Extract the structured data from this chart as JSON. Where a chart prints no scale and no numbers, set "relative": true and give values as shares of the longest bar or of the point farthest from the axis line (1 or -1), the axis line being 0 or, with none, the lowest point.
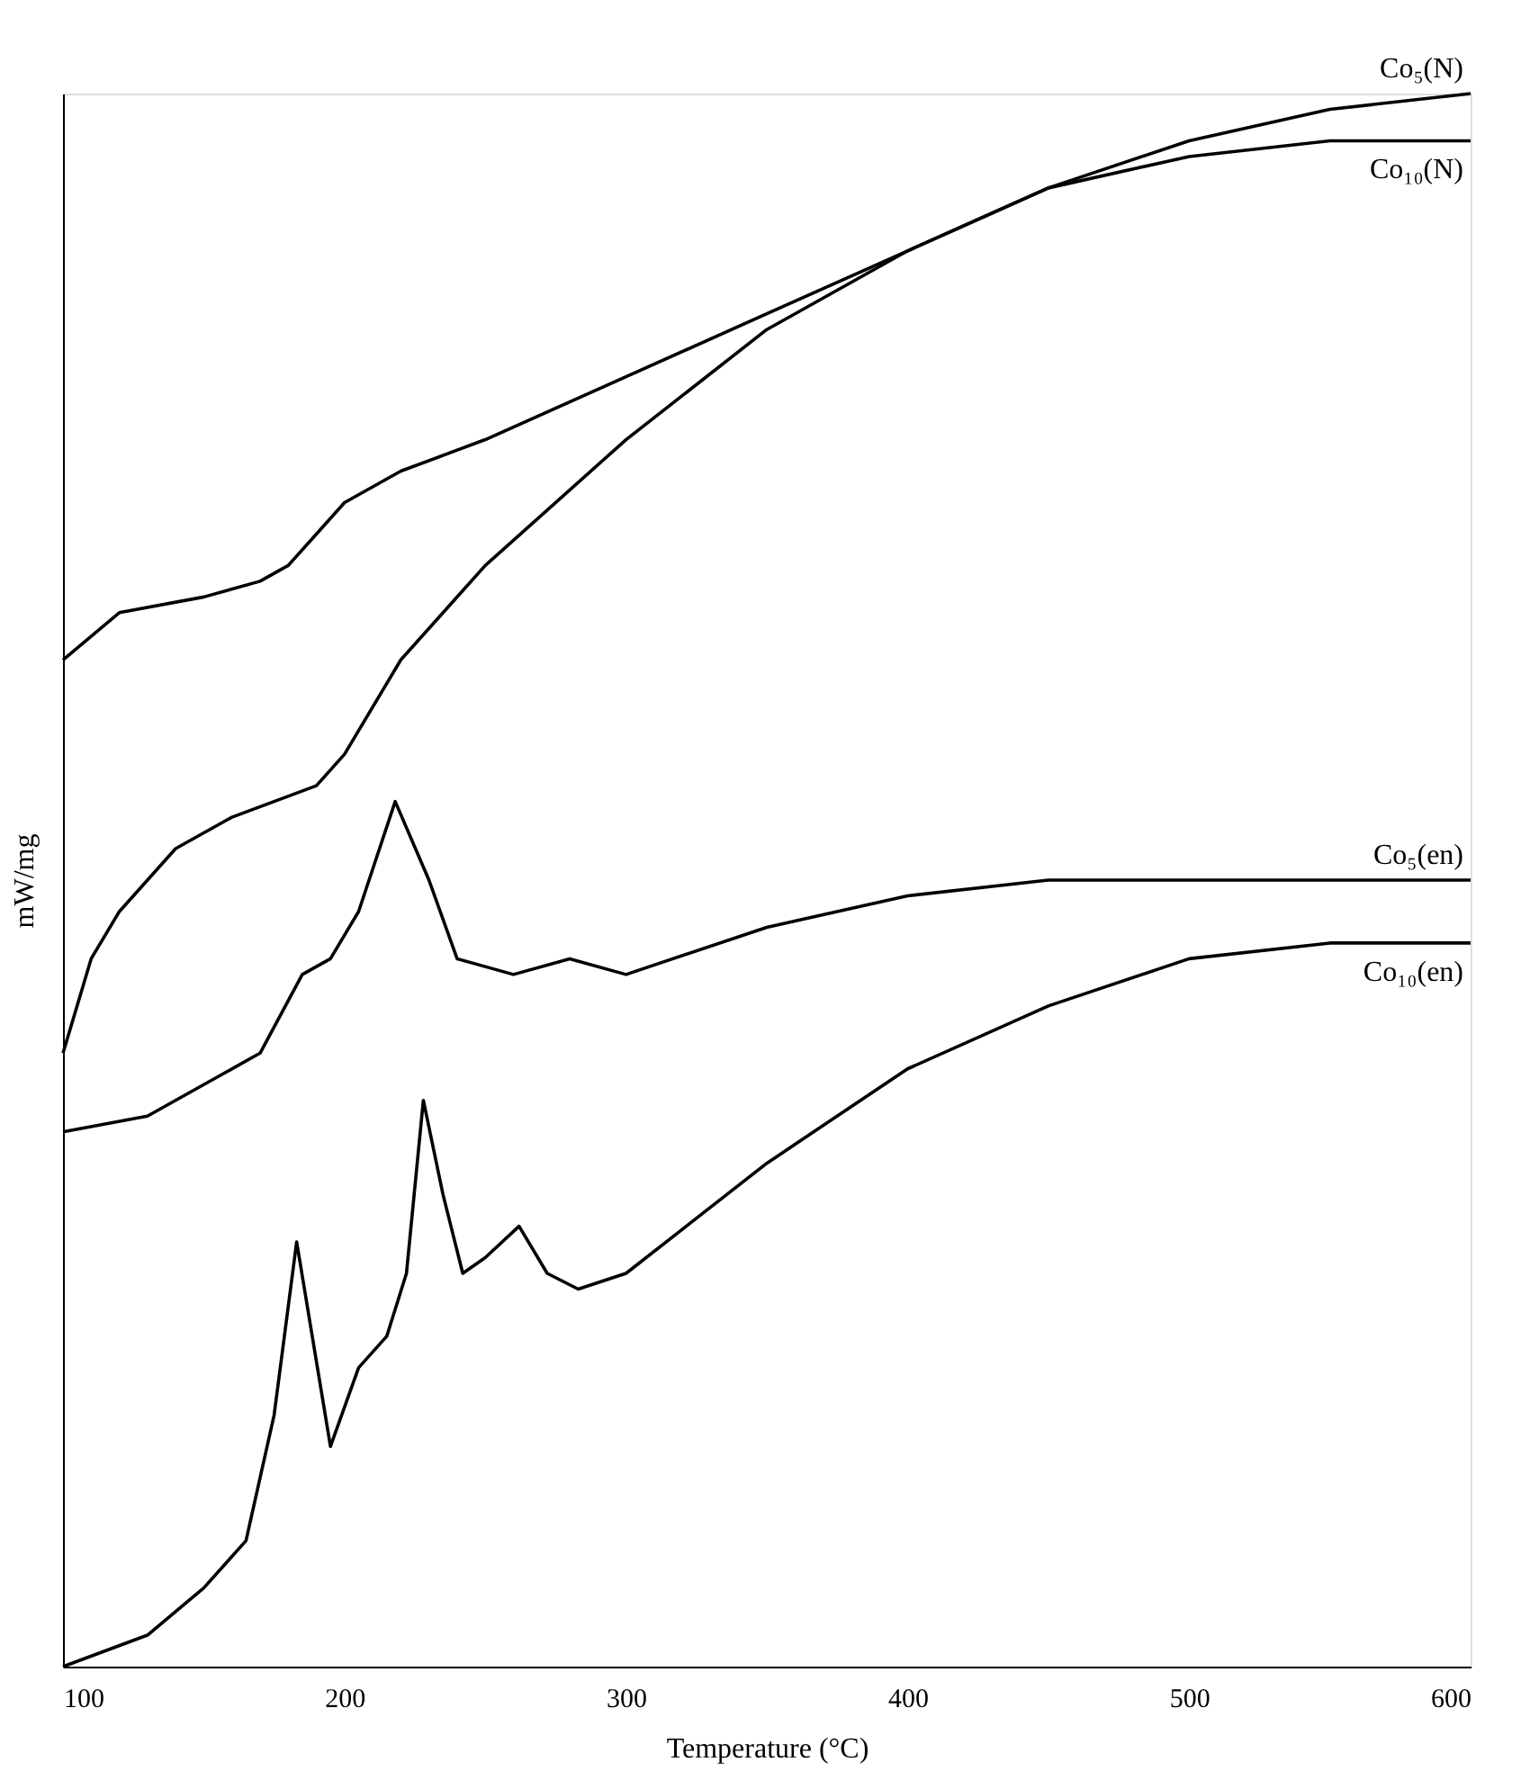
{
  "chart_data": {
    "type": "line",
    "xlabel": "Temperature (°C)",
    "ylabel": "mW/mg",
    "relative": true,
    "xlim": [
      100,
      600
    ],
    "xticks": [
      100,
      200,
      300,
      400,
      500,
      600
    ],
    "grid": false,
    "marker": "none",
    "line_style": "solid",
    "series": [
      {
        "name": "Co₅(N)",
        "color": "#000000",
        "x": [
          100,
          120,
          150,
          170,
          180,
          190,
          200,
          220,
          250,
          300,
          350,
          400,
          450,
          500,
          550,
          600
        ],
        "values": [
          0.64,
          0.67,
          0.68,
          0.69,
          0.7,
          0.72,
          0.74,
          0.76,
          0.78,
          0.82,
          0.86,
          0.9,
          0.94,
          0.97,
          0.99,
          1.0
        ]
      },
      {
        "name": "Co₁₀(N)",
        "color": "#000000",
        "x": [
          100,
          110,
          120,
          140,
          160,
          175,
          190,
          200,
          220,
          250,
          300,
          350,
          400,
          450,
          500,
          550,
          600
        ],
        "values": [
          0.39,
          0.45,
          0.48,
          0.52,
          0.54,
          0.55,
          0.56,
          0.58,
          0.64,
          0.7,
          0.78,
          0.85,
          0.9,
          0.94,
          0.96,
          0.97,
          0.97
        ]
      },
      {
        "name": "Co₅(en)",
        "color": "#000000",
        "x": [
          100,
          130,
          150,
          170,
          185,
          195,
          205,
          218,
          230,
          240,
          260,
          280,
          300,
          350,
          400,
          450,
          500,
          550,
          600
        ],
        "values": [
          0.34,
          0.35,
          0.37,
          0.39,
          0.44,
          0.45,
          0.48,
          0.55,
          0.5,
          0.45,
          0.44,
          0.45,
          0.44,
          0.47,
          0.49,
          0.5,
          0.5,
          0.5,
          0.5
        ]
      },
      {
        "name": "Co₁₀(en)",
        "color": "#000000",
        "x": [
          100,
          130,
          150,
          165,
          175,
          183,
          195,
          205,
          215,
          222,
          228,
          235,
          242,
          250,
          262,
          272,
          283,
          300,
          350,
          400,
          450,
          500,
          550,
          600
        ],
        "values": [
          0.0,
          0.02,
          0.05,
          0.08,
          0.16,
          0.27,
          0.14,
          0.19,
          0.21,
          0.25,
          0.36,
          0.3,
          0.25,
          0.26,
          0.28,
          0.25,
          0.24,
          0.25,
          0.32,
          0.38,
          0.42,
          0.45,
          0.46,
          0.46
        ]
      }
    ]
  }
}
